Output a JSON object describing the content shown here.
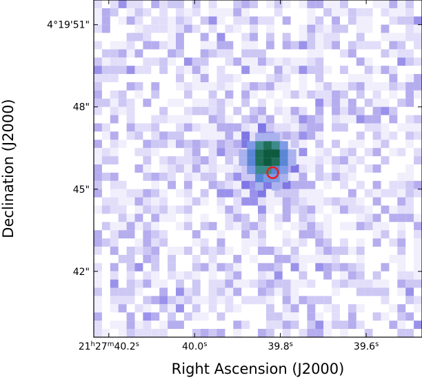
{
  "chart_data": {
    "type": "heatmap",
    "xlabel": "Right Ascension (J2000)",
    "ylabel": "Declination (J2000)",
    "x_ticks": [
      {
        "ra_s": 40.2,
        "label_parts": [
          {
            "t": "21"
          },
          {
            "t": "h",
            "sup": true
          },
          {
            "t": "27"
          },
          {
            "t": "m",
            "sup": true
          },
          {
            "t": "40.2"
          },
          {
            "t": "s",
            "sup": true
          }
        ]
      },
      {
        "ra_s": 40.0,
        "label_parts": [
          {
            "t": "40.0"
          },
          {
            "t": "s",
            "sup": true
          }
        ]
      },
      {
        "ra_s": 39.8,
        "label_parts": [
          {
            "t": "39.8"
          },
          {
            "t": "s",
            "sup": true
          }
        ]
      },
      {
        "ra_s": 39.6,
        "label_parts": [
          {
            "t": "39.6"
          },
          {
            "t": "s",
            "sup": true
          }
        ]
      }
    ],
    "y_ticks": [
      {
        "dec_arcsec": 51,
        "label": "4°19'51\""
      },
      {
        "dec_arcsec": 48,
        "label": "48\""
      },
      {
        "dec_arcsec": 45,
        "label": "45\""
      },
      {
        "dec_arcsec": 42,
        "label": "42\""
      }
    ],
    "xlim_ra_s": [
      40.235,
      39.47
    ],
    "ylim_dec_arcsec": [
      39.6,
      51.9
    ],
    "grid": false,
    "source": {
      "peak_ra_s": 39.83,
      "peak_dec_arcsec": 46.0,
      "colors": [
        "#0d5a3e",
        "#1f6e58",
        "#3d8a8a",
        "#5b86d6",
        "#7f9ae6",
        "#a9b2ee"
      ]
    },
    "marker": {
      "type": "circle",
      "color": "#e8201a",
      "ra_s": 39.818,
      "dec_arcsec": 45.6,
      "radius_arcsec": 0.2
    },
    "colormap": [
      "#ffffff",
      "#f1effc",
      "#e2defa",
      "#cdc7f4",
      "#b5adee",
      "#9a92ea",
      "#7f77e4"
    ]
  }
}
